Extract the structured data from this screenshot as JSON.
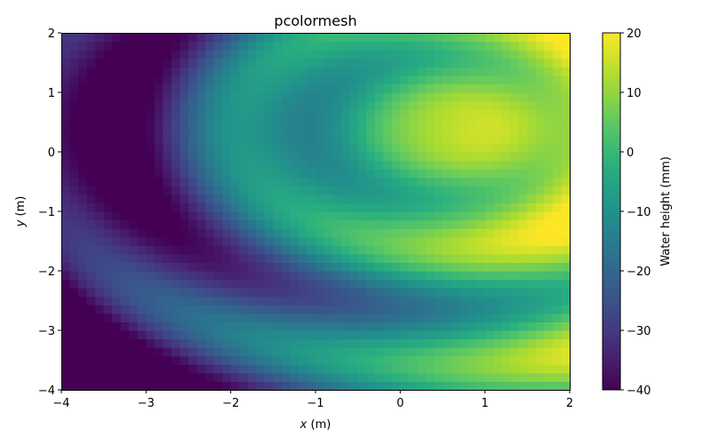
{
  "chart_data": {
    "type": "heatmap",
    "title": "pcolormesh",
    "xlabel": {
      "var": "x",
      "unit": " (m)"
    },
    "ylabel": {
      "var": "y",
      "unit": " (m)"
    },
    "colorbar_label": "Water height (mm)",
    "xlim": [
      -4,
      2
    ],
    "ylim": [
      -4,
      2
    ],
    "clim": [
      -40,
      20
    ],
    "colormap": "viridis",
    "grid_shape": [
      42,
      60
    ],
    "x_ticks": [
      -4,
      -3,
      -2,
      -1,
      0,
      1,
      2
    ],
    "x_tick_labels": [
      "−4",
      "−3",
      "−2",
      "−1",
      "0",
      "1",
      "2"
    ],
    "y_ticks": [
      -4,
      -3,
      -2,
      -1,
      0,
      1,
      2
    ],
    "y_tick_labels": [
      "−4",
      "−3",
      "−2",
      "−1",
      "0",
      "1",
      "2"
    ],
    "colorbar_ticks": [
      -40,
      -30,
      -20,
      -10,
      0,
      10,
      20
    ],
    "colorbar_tick_labels": [
      "−40",
      "−30",
      "−20",
      "−10",
      "0",
      "10",
      "20"
    ],
    "grid": false
  }
}
